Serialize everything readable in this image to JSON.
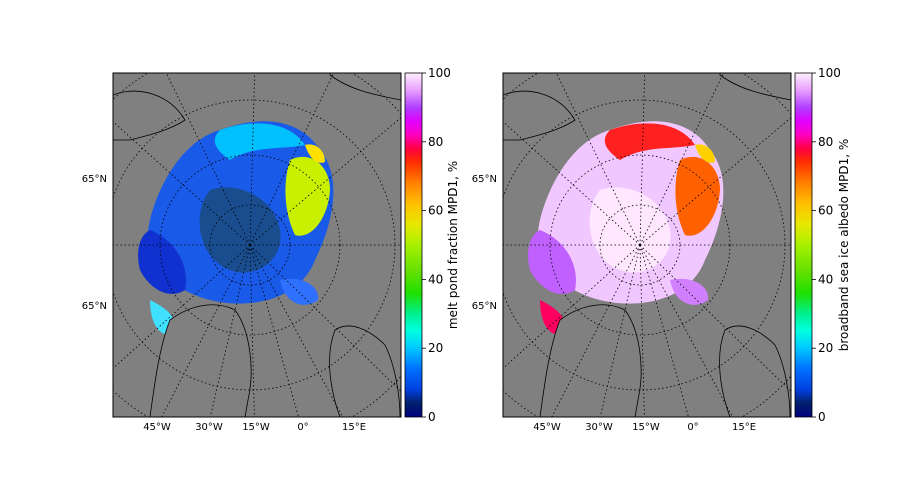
{
  "chart_data": [
    {
      "type": "heatmap",
      "projection": "north polar stereographic map",
      "background_color": "#808080",
      "graticule": "dotted",
      "lat_labels": [
        "65°N",
        "65°N"
      ],
      "lon_labels": [
        "45°W",
        "30°W",
        "15°W",
        "0°",
        "15°E"
      ],
      "colorbar": {
        "label": "melt pond fraction MPD1, %",
        "ticks": [
          0,
          20,
          40,
          60,
          80,
          100
        ],
        "range": [
          0,
          100
        ],
        "colormap": "gist_ncar"
      },
      "field_description": "mostly 5-25% over central Arctic, 45-60% in Barents/Kara sea sector"
    },
    {
      "type": "heatmap",
      "projection": "north polar stereographic map",
      "background_color": "#808080",
      "graticule": "dotted",
      "lat_labels": [
        "65°N",
        "65°N"
      ],
      "lon_labels": [
        "45°W",
        "30°W",
        "15°W",
        "0°",
        "15°E"
      ],
      "colorbar": {
        "label": "broadband sea ice albedo MPD1, %",
        "ticks": [
          0,
          20,
          40,
          60,
          80,
          100
        ],
        "range": [
          0,
          100
        ],
        "colormap": "gist_ncar"
      },
      "field_description": "mostly 85-95% over central Arctic, 60-75% in Barents/Kara sea sector"
    }
  ]
}
